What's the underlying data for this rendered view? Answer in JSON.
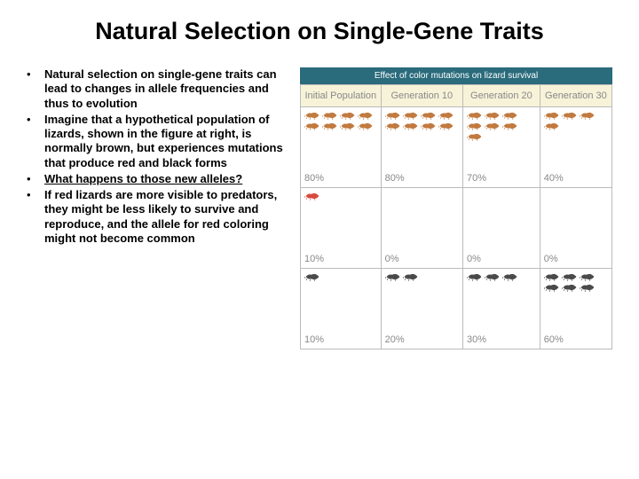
{
  "title": "Natural Selection on Single-Gene Traits",
  "bullets": [
    {
      "text": "Natural selection on single-gene traits can lead to changes in allele frequencies and thus to evolution",
      "underline": false
    },
    {
      "text": "Imagine that a hypothetical population of lizards, shown in the figure at right, is normally brown, but experiences mutations that produce red and black forms",
      "underline": false
    },
    {
      "text": "What happens to those new alleles?",
      "underline": true
    },
    {
      "text": "If red lizards are more visible to predators, they might be less likely to survive and reproduce, and the allele for red coloring might not become common",
      "underline": false
    }
  ],
  "figure": {
    "headerStrip": "Effect of color mutations on lizard survival",
    "columns": [
      "Initial Population",
      "Generation 10",
      "Generation 20",
      "Generation 30"
    ],
    "colors": {
      "brown": "#c17a3f",
      "red": "#d84b3f",
      "black": "#4a4a4a",
      "headerBg": "#2a6b7c",
      "tableBg": "#f7f3d9",
      "borderColor": "#bbbbbb",
      "pctColor": "#888888"
    },
    "rows": [
      {
        "color": "brown",
        "cells": [
          {
            "count": 8,
            "pct": "80%"
          },
          {
            "count": 8,
            "pct": "80%"
          },
          {
            "count": 7,
            "pct": "70%"
          },
          {
            "count": 4,
            "pct": "40%"
          }
        ]
      },
      {
        "color": "red",
        "cells": [
          {
            "count": 1,
            "pct": "10%"
          },
          {
            "count": 0,
            "pct": "0%"
          },
          {
            "count": 0,
            "pct": "0%"
          },
          {
            "count": 0,
            "pct": "0%"
          }
        ]
      },
      {
        "color": "black",
        "cells": [
          {
            "count": 1,
            "pct": "10%"
          },
          {
            "count": 2,
            "pct": "20%"
          },
          {
            "count": 3,
            "pct": "30%"
          },
          {
            "count": 6,
            "pct": "60%"
          }
        ]
      }
    ]
  }
}
